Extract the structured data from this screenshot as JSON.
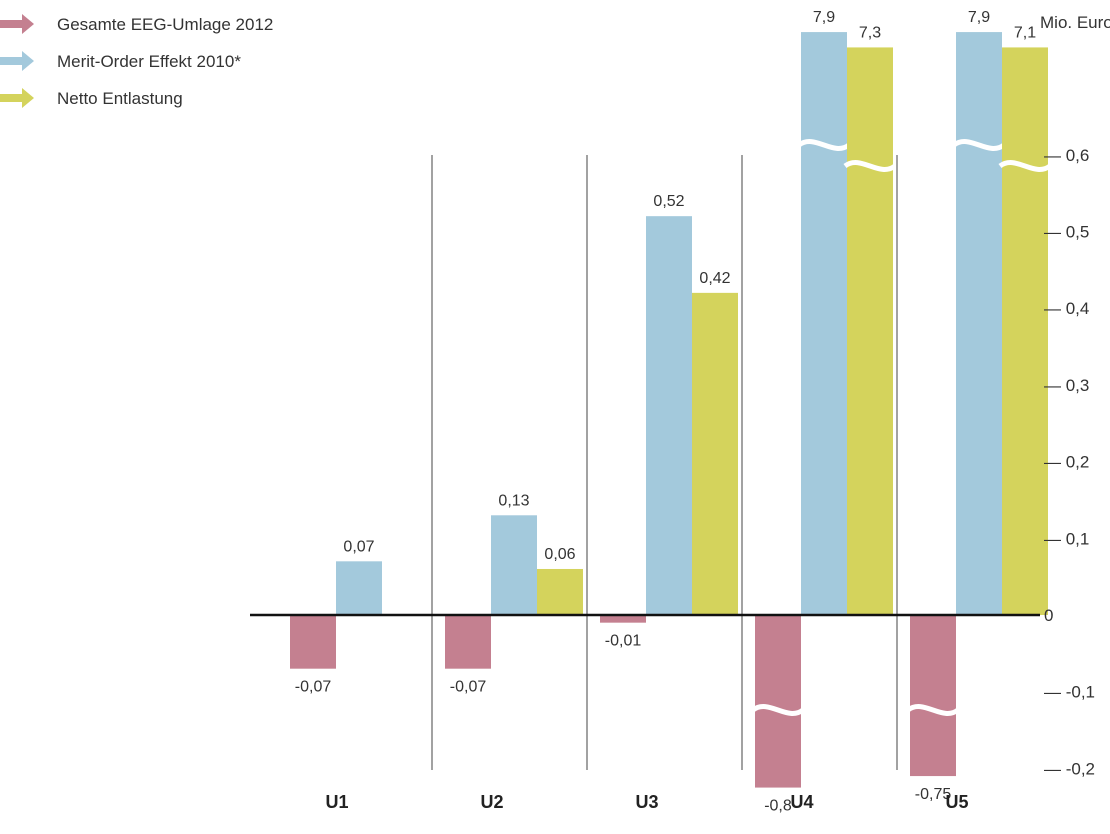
{
  "chart_data": {
    "type": "bar",
    "unit_label": "Mio. Euro",
    "categories": [
      "U1",
      "U2",
      "U3",
      "U4",
      "U5"
    ],
    "series": [
      {
        "name": "Gesamte EEG-Umlage 2012",
        "color": "#c48090",
        "values": [
          -0.07,
          -0.07,
          -0.01,
          -0.8,
          -0.75
        ],
        "labels": [
          "-0,07",
          "-0,07",
          "-0,01",
          "-0,8",
          "-0,75"
        ]
      },
      {
        "name": "Merit-Order Effekt 2010*",
        "color": "#a3c9dc",
        "values": [
          0.07,
          0.13,
          0.52,
          7.9,
          7.9
        ],
        "labels": [
          "0,07",
          "0,13",
          "0,52",
          "7,9",
          "7,9"
        ]
      },
      {
        "name": "Netto Entlastung",
        "color": "#d4d35c",
        "values": [
          null,
          0.06,
          0.42,
          7.3,
          7.1
        ],
        "labels": [
          "",
          "0,06",
          "0,42",
          "7,3",
          "7,1"
        ]
      }
    ],
    "y_ticks": [
      {
        "value": 0.6,
        "label": "— 0,6"
      },
      {
        "value": 0.5,
        "label": "— 0,5"
      },
      {
        "value": 0.4,
        "label": "— 0,4"
      },
      {
        "value": 0.3,
        "label": "— 0,3"
      },
      {
        "value": 0.2,
        "label": "— 0,2"
      },
      {
        "value": 0.1,
        "label": "— 0,1"
      },
      {
        "value": 0,
        "label": "0"
      },
      {
        "value": -0.1,
        "label": "— -0,1"
      },
      {
        "value": -0.2,
        "label": "— -0,2"
      }
    ],
    "ylim": [
      -0.2,
      0.6
    ],
    "axis_break": true,
    "legend_position": "top-left",
    "grid": false
  }
}
